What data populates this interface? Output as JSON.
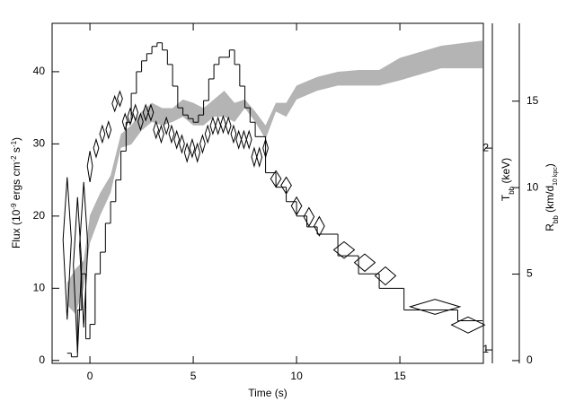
{
  "chart_data": {
    "type": "step",
    "xlabel": "Time (s)",
    "ylabel": [
      "Flux (10",
      "-9",
      " ergs cm",
      "-2",
      " s",
      "-1",
      ")"
    ],
    "y2label": [
      "T",
      "bb",
      " (keV)"
    ],
    "y3label": [
      "R",
      "bb",
      " (km/d",
      "10 kpc",
      ")"
    ],
    "xlim": [
      -1.83,
      19.04
    ],
    "xticks": [
      0,
      5,
      10,
      15
    ],
    "ylim": [
      -0.4,
      46.7
    ],
    "yticks": [
      0,
      10,
      20,
      30,
      40
    ],
    "y2lim": [
      0.955,
      3.07
    ],
    "y2ticks": [
      1,
      2
    ],
    "y2log": true,
    "y3lim": [
      -0.16,
      19.5
    ],
    "y3ticks": [
      0,
      5,
      10,
      15
    ],
    "series": [
      {
        "type": "band",
        "axis": "y3",
        "color": "#b4b4b4",
        "x": [
          -1.1,
          -0.7,
          -0.3,
          0,
          0.5,
          1,
          1.5,
          2,
          2.5,
          3,
          3.5,
          4,
          4.5,
          5,
          5.5,
          6,
          6.5,
          7,
          7.5,
          8,
          8.5,
          9,
          9.5,
          10,
          11,
          12,
          13,
          14,
          15,
          17,
          19
        ],
        "upper": [
          4.5,
          5.3,
          5.8,
          8.4,
          9.7,
          10.7,
          13.1,
          13.6,
          14.4,
          14.9,
          14.6,
          14.6,
          15.1,
          14.9,
          14.6,
          15.1,
          15.6,
          14.9,
          15.1,
          14.4,
          13.6,
          14.9,
          14.9,
          15.9,
          16.4,
          16.7,
          16.8,
          16.8,
          17.5,
          18.2,
          18.5
        ],
        "lower": [
          3.2,
          2.7,
          4.2,
          6.8,
          8.4,
          9.7,
          12.3,
          12.5,
          13.3,
          13.8,
          13.6,
          13.8,
          14.1,
          13.6,
          13.6,
          14.1,
          14.1,
          13.8,
          14.6,
          13.8,
          12.8,
          14.4,
          14.1,
          15.1,
          15.6,
          15.9,
          15.9,
          15.9,
          16.2,
          16.9,
          16.9
        ]
      },
      {
        "type": "step",
        "color": "#000000",
        "bins": [
          -1.1,
          -0.9,
          -0.6,
          -0.4,
          -0.2,
          0,
          0.25,
          0.5,
          0.75,
          1,
          1.25,
          1.5,
          1.75,
          2,
          2.25,
          2.5,
          2.75,
          3,
          3.25,
          3.5,
          3.75,
          4,
          4.25,
          4.5,
          4.75,
          5,
          5.25,
          5.5,
          5.75,
          6,
          6.25,
          6.5,
          6.75,
          7,
          7.25,
          7.5,
          7.75,
          8,
          8.5,
          9,
          9.5,
          10,
          10.5,
          11,
          12,
          13,
          14,
          15.2,
          17.8,
          19.0
        ],
        "values": [
          1,
          0.5,
          7,
          12,
          3,
          5,
          12,
          15,
          19,
          22,
          25,
          29,
          33,
          37,
          40,
          41.5,
          42.5,
          43.5,
          44,
          43,
          41,
          38,
          35,
          34,
          33.5,
          33,
          34,
          36,
          39,
          41,
          42,
          42,
          43,
          41,
          38,
          35,
          33,
          31,
          26,
          24,
          22,
          20,
          18.5,
          17.5,
          14.5,
          12,
          10,
          7,
          5.5
        ]
      },
      {
        "type": "diamond",
        "axis": "y2",
        "color": "#000000",
        "x": [
          -1.1,
          -0.6,
          -0.3,
          0,
          0.3,
          0.6,
          0.9,
          1.2,
          1.45,
          1.7,
          1.95,
          2.2,
          2.45,
          2.7,
          2.95,
          3.2,
          3.45,
          3.7,
          3.95,
          4.2,
          4.45,
          4.7,
          4.95,
          5.2,
          5.45,
          5.7,
          5.95,
          6.2,
          6.45,
          6.7,
          6.95,
          7.2,
          7.45,
          7.7,
          7.95,
          8.2,
          8.5,
          9.0,
          9.5,
          10.0,
          10.6,
          11.1,
          12.3,
          13.3,
          14.3,
          16.7,
          18.3
        ],
        "values": [
          1.46,
          1.34,
          1.43,
          1.88,
          2.0,
          2.1,
          2.13,
          2.33,
          2.37,
          2.19,
          2.23,
          2.26,
          2.19,
          2.26,
          2.26,
          2.13,
          2.1,
          2.16,
          2.1,
          2.06,
          2.03,
          1.97,
          2.0,
          1.97,
          2.03,
          2.1,
          2.16,
          2.16,
          2.17,
          2.16,
          2.1,
          2.06,
          2.06,
          2.06,
          1.94,
          1.94,
          2.0,
          1.8,
          1.76,
          1.64,
          1.58,
          1.53,
          1.41,
          1.35,
          1.29,
          1.16,
          1.09
        ],
        "xerr": [
          0.2,
          0.2,
          0.2,
          0.125,
          0.125,
          0.125,
          0.125,
          0.125,
          0.125,
          0.125,
          0.125,
          0.125,
          0.125,
          0.125,
          0.125,
          0.125,
          0.125,
          0.125,
          0.125,
          0.125,
          0.125,
          0.125,
          0.125,
          0.125,
          0.125,
          0.125,
          0.125,
          0.125,
          0.125,
          0.125,
          0.125,
          0.125,
          0.125,
          0.125,
          0.125,
          0.125,
          0.125,
          0.25,
          0.25,
          0.25,
          0.25,
          0.25,
          0.5,
          0.5,
          0.5,
          1.2,
          0.8
        ],
        "yerr": [
          0.35,
          0.35,
          0.35,
          0.1,
          0.06,
          0.06,
          0.06,
          0.06,
          0.06,
          0.06,
          0.06,
          0.06,
          0.06,
          0.06,
          0.06,
          0.06,
          0.06,
          0.06,
          0.06,
          0.06,
          0.06,
          0.06,
          0.06,
          0.06,
          0.06,
          0.06,
          0.06,
          0.06,
          0.06,
          0.06,
          0.06,
          0.06,
          0.06,
          0.06,
          0.06,
          0.06,
          0.06,
          0.05,
          0.05,
          0.05,
          0.05,
          0.05,
          0.04,
          0.04,
          0.04,
          0.03,
          0.03
        ]
      }
    ]
  }
}
